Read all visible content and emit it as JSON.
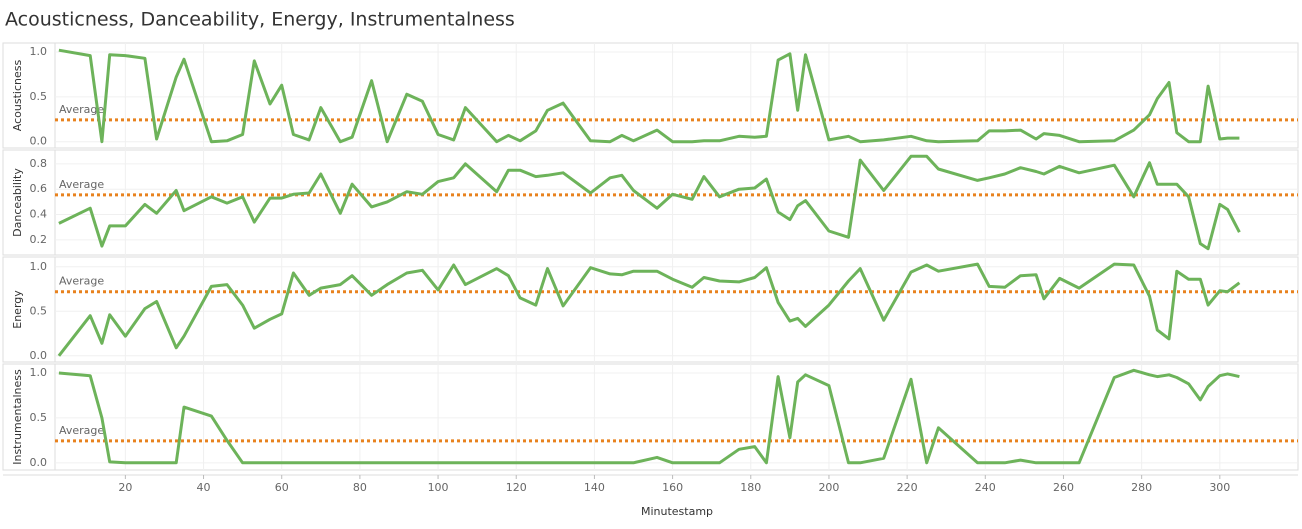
{
  "chart_data": {
    "type": "line",
    "title": "Acousticness, Danceability, Energy, Instrumentalness",
    "x_label": "Minutestamp",
    "xlim": [
      2,
      320
    ],
    "xticks": [
      20,
      40,
      60,
      80,
      100,
      120,
      140,
      160,
      180,
      200,
      220,
      240,
      260,
      280,
      300
    ],
    "grid": true,
    "x": [
      3,
      11,
      14,
      16,
      20,
      25,
      28,
      33,
      35,
      42,
      46,
      50,
      53,
      57,
      60,
      63,
      67,
      70,
      75,
      78,
      83,
      87,
      92,
      96,
      100,
      104,
      107,
      115,
      118,
      121,
      125,
      128,
      132,
      139,
      144,
      147,
      150,
      156,
      160,
      165,
      168,
      172,
      177,
      181,
      184,
      187,
      190,
      192,
      194,
      200,
      205,
      208,
      214,
      221,
      225,
      228,
      238,
      241,
      245,
      249,
      253,
      255,
      259,
      264,
      273,
      278,
      282,
      284,
      287,
      289,
      292,
      295,
      297,
      300,
      302,
      305
    ],
    "panels": [
      {
        "y_label": "Acousticness",
        "color": "#6db35a",
        "ylim": [
          -0.07,
          1.1
        ],
        "yticks": [
          {
            "value": 0,
            "label": "0.0"
          },
          0.5,
          {
            "value": 1,
            "label": "1.0"
          }
        ],
        "reference_line": {
          "label": "Average",
          "value": 0.244,
          "color": "#e8821e"
        },
        "values": [
          1.02,
          0.96,
          0.0,
          0.97,
          0.96,
          0.93,
          0.03,
          0.72,
          0.92,
          0.0,
          0.01,
          0.08,
          0.9,
          0.42,
          0.63,
          0.08,
          0.02,
          0.38,
          0.0,
          0.05,
          0.68,
          0.0,
          0.53,
          0.45,
          0.08,
          0.02,
          0.38,
          0.0,
          0.07,
          0.01,
          0.12,
          0.35,
          0.43,
          0.01,
          0.0,
          0.07,
          0.01,
          0.13,
          0.0,
          0.0,
          0.01,
          0.01,
          0.06,
          0.05,
          0.06,
          0.91,
          0.98,
          0.35,
          0.97,
          0.02,
          0.06,
          0.0,
          0.02,
          0.06,
          0.01,
          0.0,
          0.01,
          0.12,
          0.12,
          0.13,
          0.03,
          0.09,
          0.07,
          0.0,
          0.01,
          0.13,
          0.3,
          0.48,
          0.66,
          0.1,
          0.0,
          0.0,
          0.62,
          0.03,
          0.04,
          0.04
        ]
      },
      {
        "y_label": "Danceability",
        "color": "#6db35a",
        "ylim": [
          0.08,
          0.91
        ],
        "yticks": [
          0.2,
          0.4,
          0.6,
          0.8
        ],
        "reference_line": {
          "label": "Average",
          "value": 0.555,
          "color": "#e8821e"
        },
        "values": [
          0.33,
          0.45,
          0.15,
          0.31,
          0.31,
          0.48,
          0.41,
          0.59,
          0.43,
          0.54,
          0.49,
          0.54,
          0.34,
          0.53,
          0.53,
          0.56,
          0.57,
          0.72,
          0.41,
          0.64,
          0.46,
          0.5,
          0.58,
          0.56,
          0.66,
          0.69,
          0.8,
          0.58,
          0.75,
          0.75,
          0.7,
          0.71,
          0.73,
          0.57,
          0.69,
          0.71,
          0.59,
          0.45,
          0.56,
          0.52,
          0.7,
          0.54,
          0.6,
          0.61,
          0.68,
          0.42,
          0.36,
          0.47,
          0.51,
          0.27,
          0.22,
          0.83,
          0.59,
          0.86,
          0.86,
          0.76,
          0.67,
          0.69,
          0.72,
          0.77,
          0.74,
          0.72,
          0.78,
          0.73,
          0.79,
          0.54,
          0.81,
          0.64,
          0.64,
          0.64,
          0.54,
          0.17,
          0.13,
          0.48,
          0.44,
          0.26
        ]
      },
      {
        "y_label": "Energy",
        "color": "#6db35a",
        "ylim": [
          -0.07,
          1.11
        ],
        "yticks": [
          {
            "value": 0,
            "label": "0.0"
          },
          0.5,
          {
            "value": 1,
            "label": "1.0"
          }
        ],
        "reference_line": {
          "label": "Average",
          "value": 0.72,
          "color": "#e8821e"
        },
        "values": [
          0.0,
          0.45,
          0.14,
          0.46,
          0.22,
          0.53,
          0.61,
          0.09,
          0.22,
          0.78,
          0.8,
          0.57,
          0.31,
          0.41,
          0.47,
          0.93,
          0.68,
          0.76,
          0.8,
          0.9,
          0.68,
          0.8,
          0.93,
          0.96,
          0.74,
          1.02,
          0.8,
          0.98,
          0.9,
          0.65,
          0.57,
          0.98,
          0.56,
          0.99,
          0.92,
          0.91,
          0.95,
          0.95,
          0.86,
          0.77,
          0.88,
          0.84,
          0.83,
          0.88,
          0.99,
          0.6,
          0.39,
          0.42,
          0.33,
          0.57,
          0.84,
          0.98,
          0.4,
          0.94,
          1.02,
          0.95,
          1.03,
          0.78,
          0.77,
          0.9,
          0.91,
          0.64,
          0.87,
          0.76,
          1.03,
          1.02,
          0.67,
          0.29,
          0.19,
          0.95,
          0.86,
          0.86,
          0.57,
          0.73,
          0.72,
          0.82
        ]
      },
      {
        "y_label": "Instrumentalness",
        "color": "#6db35a",
        "ylim": [
          -0.08,
          1.1
        ],
        "yticks": [
          {
            "value": 0,
            "label": "0.0"
          },
          0.5,
          {
            "value": 1,
            "label": "1.0"
          }
        ],
        "reference_line": {
          "label": "Average",
          "value": 0.244,
          "color": "#e8821e"
        },
        "values": [
          1.0,
          0.97,
          0.5,
          0.01,
          0.0,
          0.0,
          0.0,
          0.0,
          0.62,
          0.52,
          0.25,
          0.0,
          0.0,
          0.0,
          0.0,
          0.0,
          0.0,
          0.0,
          0.0,
          0.0,
          0.0,
          0.0,
          0.0,
          0.0,
          0.0,
          0.0,
          0.0,
          0.0,
          0.0,
          0.0,
          0.0,
          0.0,
          0.0,
          0.0,
          0.0,
          0.0,
          0.0,
          0.06,
          0.0,
          0.0,
          0.0,
          0.0,
          0.15,
          0.18,
          0.0,
          0.96,
          0.28,
          0.9,
          0.98,
          0.86,
          0.0,
          0.0,
          0.05,
          0.93,
          0.0,
          0.39,
          0.0,
          0.0,
          0.0,
          0.03,
          0.0,
          0.0,
          0.0,
          0.0,
          0.95,
          1.03,
          0.98,
          0.96,
          0.98,
          0.95,
          0.88,
          0.7,
          0.85,
          0.97,
          0.99,
          0.96
        ]
      }
    ]
  }
}
